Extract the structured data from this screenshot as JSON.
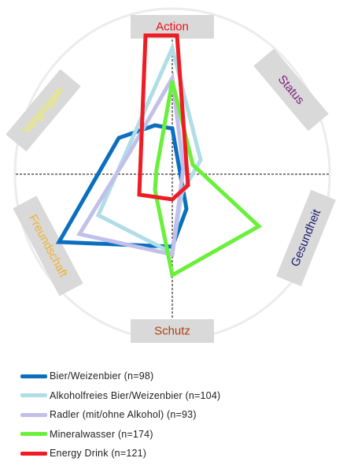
{
  "chart_data": {
    "type": "radar",
    "title": "",
    "axes": [
      {
        "key": "action",
        "label": "Action",
        "label_color": "#e8101a"
      },
      {
        "key": "status",
        "label": "Status",
        "label_color": "#7a1a7a"
      },
      {
        "key": "gesundheit",
        "label": "Gesundheit",
        "label_color": "#1c1c6e"
      },
      {
        "key": "schutz",
        "label": "Schutz",
        "label_color": "#b04010"
      },
      {
        "key": "freundschaft",
        "label": "Freundschaft",
        "label_color": "#f0b030"
      },
      {
        "key": "vergnuegen",
        "label": "Vergnügen",
        "label_color": "#f0f050"
      }
    ],
    "series": [
      {
        "name": "Bier/Weizenbier (n=98)",
        "color": "#0a6fbf",
        "points": [
          [
            0.0,
            0.29
          ],
          [
            0.09,
            -0.22
          ],
          [
            0.0,
            -0.46
          ],
          [
            -0.72,
            -0.43
          ],
          [
            -0.34,
            0.23
          ],
          [
            -0.11,
            0.31
          ]
        ]
      },
      {
        "name": "Alkoholfreies Bier/Weizenbier (n=104)",
        "color": "#b0dde8",
        "points": [
          [
            0.0,
            0.8
          ],
          [
            0.18,
            0.09
          ],
          [
            0.06,
            -0.12
          ],
          [
            0.0,
            -0.5
          ],
          [
            -0.47,
            -0.26
          ],
          [
            0.0,
            0.8
          ]
        ]
      },
      {
        "name": "Radler (mit/ohne Alkohol) (n=93)",
        "color": "#c0c0ea",
        "points": [
          [
            0.0,
            0.61
          ],
          [
            0.07,
            0.04
          ],
          [
            0.0,
            -0.51
          ],
          [
            -0.59,
            -0.38
          ],
          [
            -0.27,
            0.14
          ],
          [
            0.0,
            0.61
          ]
        ]
      },
      {
        "name": "Mineralwasser (n=174)",
        "color": "#6af03a",
        "points": [
          [
            0.0,
            0.59
          ],
          [
            0.13,
            0.06
          ],
          [
            0.55,
            -0.33
          ],
          [
            0.0,
            -0.64
          ],
          [
            -0.11,
            -0.1
          ],
          [
            -0.1,
            0.03
          ],
          [
            0.0,
            0.59
          ]
        ]
      },
      {
        "name": "Energy Drink (n=121)",
        "color": "#ee1c24",
        "points": [
          [
            -0.17,
            0.88
          ],
          [
            0.03,
            0.88
          ],
          [
            0.1,
            -0.07
          ],
          [
            0.0,
            -0.16
          ],
          [
            -0.21,
            -0.13
          ],
          [
            -0.17,
            0.88
          ]
        ]
      }
    ],
    "legend_position": "bottom",
    "grid": true
  }
}
